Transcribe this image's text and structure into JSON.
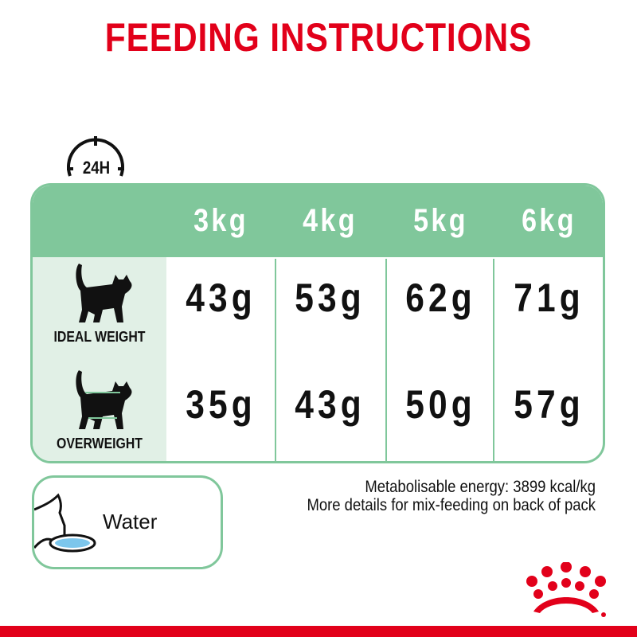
{
  "title": "FEEDING INSTRUCTIONS",
  "period_badge": "24H",
  "table": {
    "columns": [
      "3kg",
      "4kg",
      "5kg",
      "6kg"
    ],
    "rows": [
      {
        "label": "IDEAL WEIGHT",
        "icon": "cat-icon",
        "values": [
          "43g",
          "53g",
          "62g",
          "71g"
        ]
      },
      {
        "label": "OVERWEIGHT",
        "icon": "overweight-cat-icon",
        "values": [
          "35g",
          "43g",
          "50g",
          "57g"
        ]
      }
    ]
  },
  "water": {
    "label": "Water",
    "icon": "cat-drinking-icon"
  },
  "info": {
    "energy": "Metabolisable energy: 3899 kcal/kg",
    "mix_feeding": "More details for mix-feeding on back of pack"
  },
  "colors": {
    "brand_red": "#e2001a",
    "green": "#80c79b",
    "light_green": "#e1f0e6"
  }
}
